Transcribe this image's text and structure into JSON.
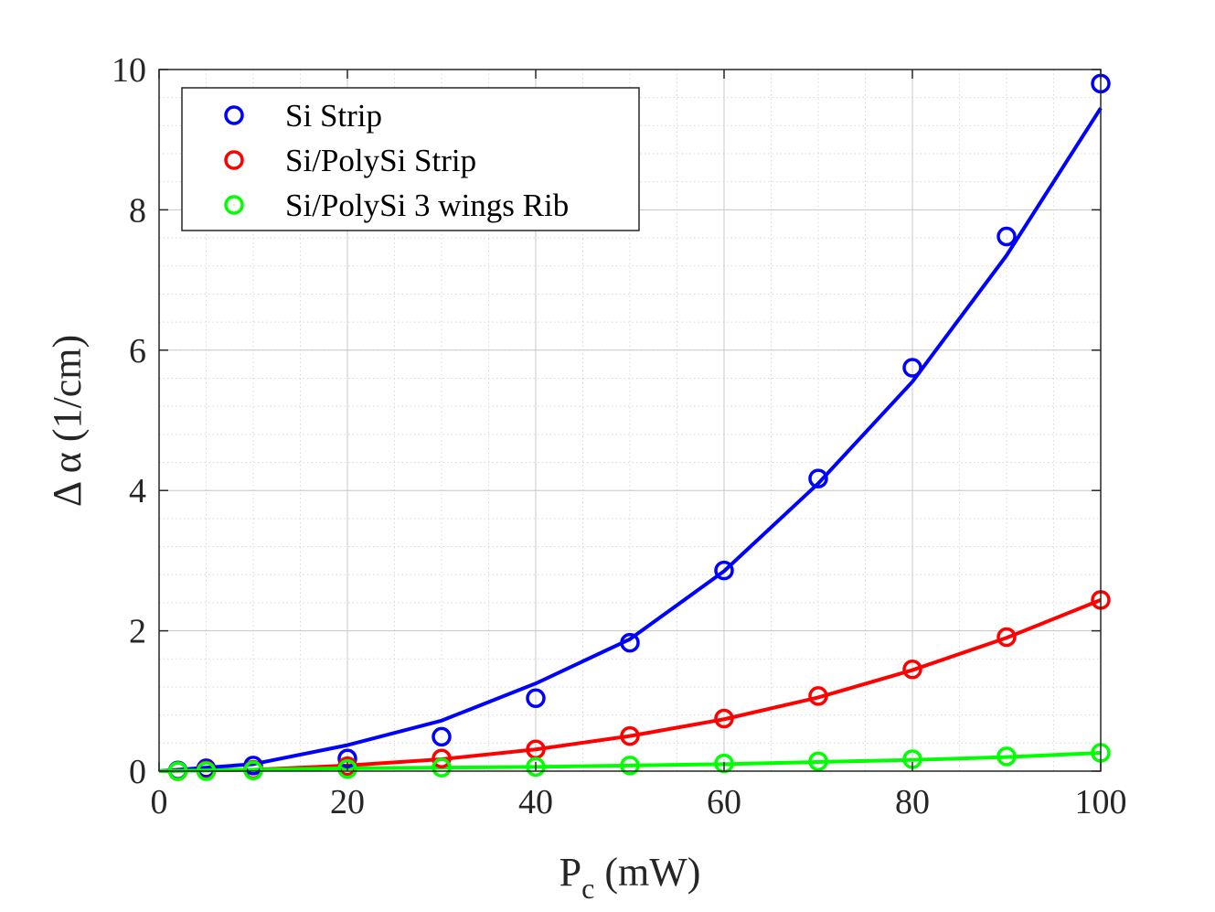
{
  "chart_data": {
    "type": "scatter",
    "title": "",
    "xlabel": {
      "main": "P",
      "subscript": "c",
      "unit": " (mW)"
    },
    "ylabel": "Δ α (1/cm)",
    "xlim": [
      0,
      100
    ],
    "ylim": [
      0,
      10
    ],
    "xticks": [
      0,
      20,
      40,
      60,
      80,
      100
    ],
    "yticks": [
      0,
      2,
      4,
      6,
      8,
      10
    ],
    "xtick_labels": [
      "0",
      "20",
      "40",
      "60",
      "80",
      "100"
    ],
    "ytick_labels": [
      "0",
      "2",
      "4",
      "6",
      "8",
      "10"
    ],
    "grid": true,
    "minor_grid": true,
    "legend_position": "top-left",
    "series": [
      {
        "name": "Si Strip",
        "color": "#0000ff",
        "x": [
          2,
          5,
          10,
          20,
          30,
          40,
          50,
          60,
          70,
          80,
          90,
          100
        ],
        "y": [
          0.01,
          0.04,
          0.08,
          0.18,
          0.49,
          1.04,
          1.83,
          2.86,
          4.17,
          5.75,
          7.62,
          9.8
        ],
        "fit_x": [
          0,
          10,
          20,
          30,
          40,
          50,
          60,
          70,
          80,
          90,
          100
        ],
        "fit_y": [
          0,
          0.1,
          0.37,
          0.72,
          1.25,
          1.88,
          2.85,
          4.1,
          5.55,
          7.35,
          9.45
        ]
      },
      {
        "name": "Si/PolySi Strip",
        "color": "#ff0000",
        "x": [
          2,
          5,
          10,
          20,
          30,
          40,
          50,
          60,
          70,
          80,
          90,
          100
        ],
        "y": [
          0,
          0.01,
          0.02,
          0.07,
          0.18,
          0.31,
          0.5,
          0.75,
          1.07,
          1.45,
          1.91,
          2.44
        ],
        "fit_x": [
          0,
          10,
          20,
          30,
          40,
          50,
          60,
          70,
          80,
          90,
          100
        ],
        "fit_y": [
          0,
          0.02,
          0.08,
          0.17,
          0.31,
          0.5,
          0.74,
          1.05,
          1.44,
          1.9,
          2.44
        ]
      },
      {
        "name": "Si/PolySi 3 wings Rib",
        "color": "#00ff00",
        "x": [
          2,
          5,
          10,
          20,
          30,
          40,
          50,
          60,
          70,
          80,
          90,
          100
        ],
        "y": [
          0,
          0,
          0.01,
          0.03,
          0.05,
          0.06,
          0.08,
          0.11,
          0.14,
          0.17,
          0.21,
          0.26
        ],
        "fit_x": [
          0,
          10,
          20,
          30,
          40,
          50,
          60,
          70,
          80,
          90,
          100
        ],
        "fit_y": [
          0,
          0.02,
          0.04,
          0.05,
          0.06,
          0.08,
          0.1,
          0.13,
          0.16,
          0.2,
          0.26
        ]
      }
    ]
  }
}
